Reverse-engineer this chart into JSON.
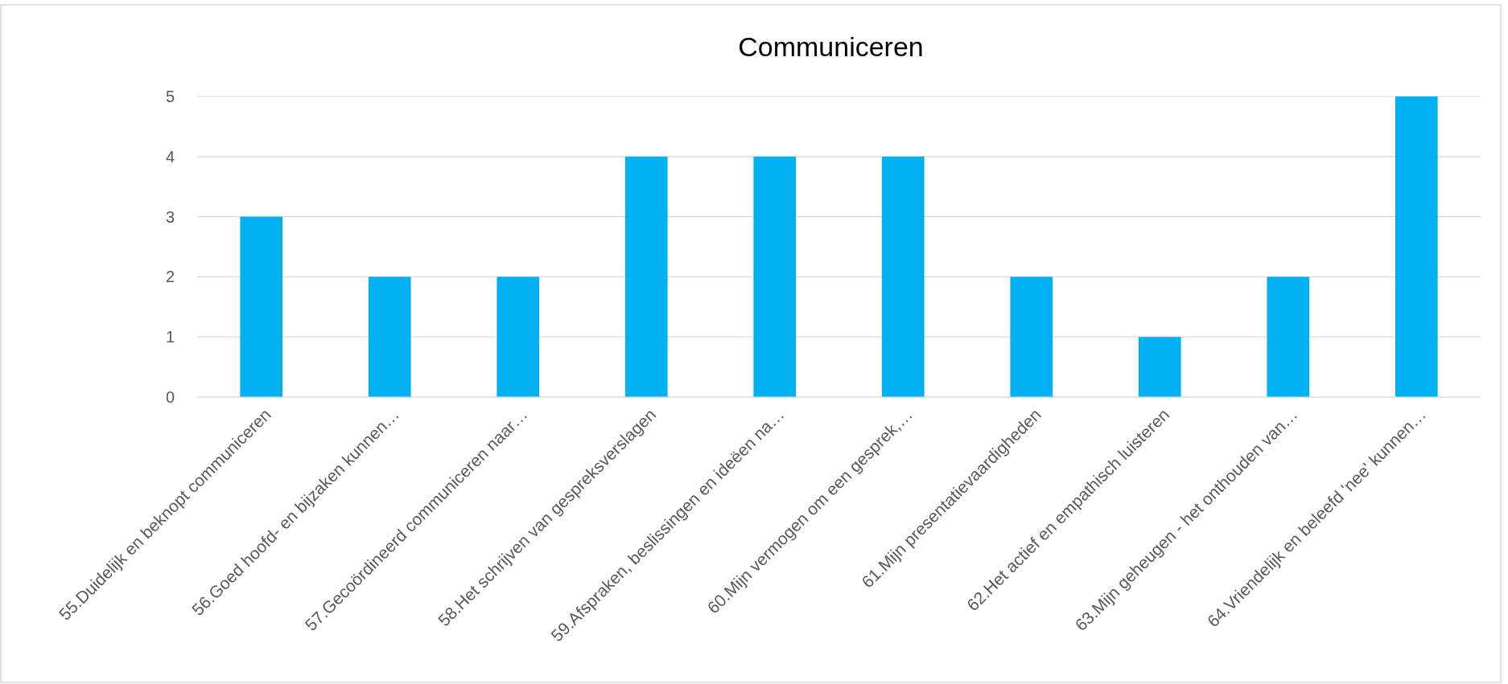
{
  "chart_data": {
    "type": "bar",
    "title": "Communiceren",
    "categories": [
      "55.Duidelijk en beknopt communiceren",
      "56.Goed hoofd- en bijzaken kunnen…",
      "57.Gecoördineerd communiceren naar…",
      "58.Het schrijven van gespreksverslagen",
      "59.Afspraken, beslissingen en ideëen na…",
      "60.Mijn vermogen om een gesprek,…",
      "61.Mijn presentatievaardigheden",
      "62.Het actief en empathisch luisteren",
      "63.Mijn geheugen - het onthouden van…",
      "64.Vriendelijk en beleefd 'nee' kunnen…"
    ],
    "values": [
      3,
      2,
      2,
      4,
      4,
      4,
      2,
      1,
      2,
      5
    ],
    "color": "#00b0f0",
    "ylim": [
      0,
      5
    ],
    "yticks": [
      0,
      1,
      2,
      3,
      4,
      5
    ],
    "grid": "y"
  }
}
